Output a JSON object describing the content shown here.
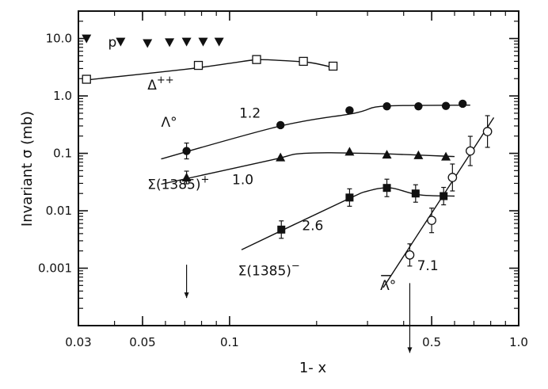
{
  "chart_data": {
    "type": "scatter",
    "title": "",
    "xlabel": "1- x",
    "ylabel": "Invariant σ (mb)",
    "xscale": "log",
    "yscale": "log",
    "xlim": [
      0.03,
      1.0
    ],
    "ylim": [
      0.0001,
      30
    ],
    "x_ticks": [
      {
        "value": 0.03,
        "label": "0.03"
      },
      {
        "value": 0.05,
        "label": "0.05"
      },
      {
        "value": 0.1,
        "label": "0.1"
      },
      {
        "value": 0.5,
        "label": "0.5"
      },
      {
        "value": 1.0,
        "label": "1.0"
      }
    ],
    "y_ticks": [
      {
        "value": 10,
        "label": "10.0"
      },
      {
        "value": 1,
        "label": "1.0"
      },
      {
        "value": 0.1,
        "label": "0.1"
      },
      {
        "value": 0.01,
        "label": "0.01"
      },
      {
        "value": 0.001,
        "label": "0.001"
      }
    ],
    "grid": false,
    "legend": "none",
    "series": [
      {
        "name": "p",
        "marker": "triangle-down-filled",
        "points": [
          [
            0.032,
            10.0
          ],
          [
            0.042,
            8.8
          ],
          [
            0.052,
            8.3
          ],
          [
            0.062,
            8.6
          ],
          [
            0.071,
            8.8
          ],
          [
            0.081,
            8.8
          ],
          [
            0.092,
            8.8
          ]
        ],
        "fit": null
      },
      {
        "name": "Δ++",
        "marker": "square-open",
        "points": [
          [
            0.032,
            1.95
          ],
          [
            0.078,
            3.4
          ],
          [
            0.124,
            4.3
          ],
          [
            0.18,
            4.0
          ],
          [
            0.228,
            3.3
          ]
        ],
        "fit": [
          [
            0.032,
            1.9
          ],
          [
            0.07,
            2.9
          ],
          [
            0.1,
            3.7
          ],
          [
            0.124,
            4.25
          ],
          [
            0.15,
            4.15
          ],
          [
            0.19,
            3.8
          ],
          [
            0.23,
            3.1
          ]
        ]
      },
      {
        "name": "Λ°",
        "marker": "circle-filled",
        "points": [
          [
            0.071,
            0.11
          ],
          [
            0.15,
            0.31
          ],
          [
            0.26,
            0.56
          ],
          [
            0.35,
            0.66
          ],
          [
            0.45,
            0.66
          ],
          [
            0.56,
            0.67
          ],
          [
            0.64,
            0.73
          ]
        ],
        "fit": [
          [
            0.058,
            0.08
          ],
          [
            0.15,
            0.3
          ],
          [
            0.27,
            0.5
          ],
          [
            0.32,
            0.64
          ],
          [
            0.4,
            0.68
          ],
          [
            0.68,
            0.69
          ]
        ]
      },
      {
        "name": "Σ(1385)+",
        "marker": "triangle-up-filled",
        "points": [
          [
            0.071,
            0.038
          ],
          [
            0.15,
            0.085
          ],
          [
            0.26,
            0.107
          ],
          [
            0.35,
            0.095
          ],
          [
            0.45,
            0.093
          ],
          [
            0.56,
            0.088
          ]
        ],
        "fit": [
          [
            0.058,
            0.029
          ],
          [
            0.14,
            0.077
          ],
          [
            0.18,
            0.1
          ],
          [
            0.3,
            0.1
          ],
          [
            0.6,
            0.088
          ]
        ]
      },
      {
        "name": "Σ(1385)-",
        "marker": "square-filled",
        "points": [
          [
            0.151,
            0.0047
          ],
          [
            0.26,
            0.017
          ],
          [
            0.35,
            0.025
          ],
          [
            0.44,
            0.02
          ],
          [
            0.55,
            0.018
          ]
        ],
        "fit": [
          [
            0.11,
            0.0021
          ],
          [
            0.25,
            0.015
          ],
          [
            0.3,
            0.022
          ],
          [
            0.36,
            0.025
          ],
          [
            0.45,
            0.019
          ],
          [
            0.6,
            0.018
          ]
        ]
      },
      {
        "name": "Λ̄°",
        "marker": "circle-open",
        "points": [
          [
            0.42,
            0.0017
          ],
          [
            0.5,
            0.0068
          ],
          [
            0.59,
            0.038
          ],
          [
            0.68,
            0.11
          ],
          [
            0.78,
            0.24
          ]
        ],
        "fit": [
          [
            0.34,
            0.00046
          ],
          [
            0.82,
            0.42
          ]
        ]
      }
    ],
    "upper_limits": [
      {
        "x": 0.071,
        "y": 0.00115
      },
      {
        "x": 0.42,
        "y": 0.00055
      }
    ],
    "annotations": [
      {
        "text": "p",
        "x": 0.038,
        "y": 7.2
      },
      {
        "text": "Δ",
        "sup": "++",
        "x": 0.052,
        "y": 1.3
      },
      {
        "text": "Λ°",
        "x": 0.058,
        "y": 0.29
      },
      {
        "text": "Σ(1385)",
        "sup": "+",
        "x": 0.052,
        "y": 0.024
      },
      {
        "text": "Σ(1385)",
        "sup": "−",
        "x": 0.107,
        "y": 0.00075
      },
      {
        "text": "Λ°",
        "overline": true,
        "x": 0.332,
        "y": 0.00042
      },
      {
        "text": "1.2",
        "x": 0.108,
        "y": 0.42
      },
      {
        "text": "1.0",
        "x": 0.102,
        "y": 0.029
      },
      {
        "text": "2.6",
        "x": 0.178,
        "y": 0.0046
      },
      {
        "text": "7.1",
        "x": 0.445,
        "y": 0.00092
      }
    ]
  }
}
